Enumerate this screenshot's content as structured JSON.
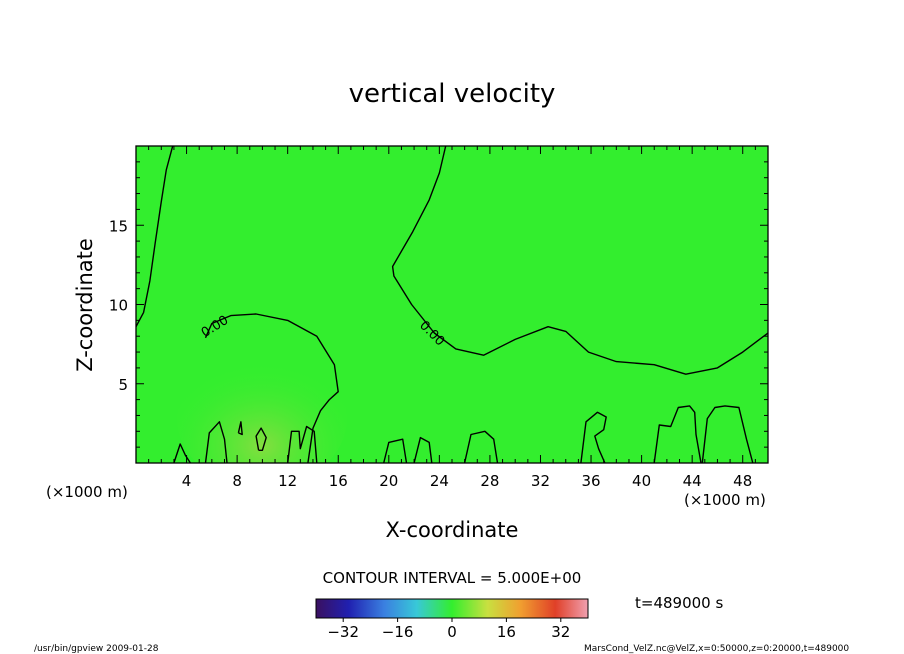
{
  "chart_data": {
    "type": "heatmap",
    "title": "vertical velocity",
    "xlabel": "X-coordinate",
    "ylabel": "Z-coordinate",
    "x_unit_left": "(×1000 m)",
    "x_unit_right": "(×1000 m)",
    "xlim": [
      0,
      50
    ],
    "ylim": [
      0,
      20
    ],
    "x_ticks": [
      4,
      8,
      12,
      16,
      20,
      24,
      28,
      32,
      36,
      40,
      44,
      48
    ],
    "y_ticks": [
      5,
      10,
      15
    ],
    "contour_label": "0.00",
    "contour_interval_text": "CONTOUR INTERVAL = 5.000E+00",
    "time_text": "t=489000 s",
    "colorbar": {
      "ticks": [
        -32,
        -16,
        0,
        16,
        32
      ],
      "range": [
        -40,
        40
      ]
    },
    "footer_left": "/usr/bin/gpview   2009-01-28",
    "footer_right": "MarsCond_VelZ.nc@VelZ,x=0:50000,z=0:20000,t=489000",
    "colors": {
      "field": "#33ee2e",
      "plume": "#7ee040",
      "contour": "#000000"
    },
    "contours": [
      {
        "name": "zero-contour-left",
        "points": [
          [
            0,
            8.6
          ],
          [
            0.6,
            9.5
          ],
          [
            1.1,
            11.5
          ],
          [
            1.5,
            13.8
          ],
          [
            2.0,
            16.5
          ],
          [
            2.4,
            18.5
          ],
          [
            2.9,
            20
          ]
        ]
      },
      {
        "name": "zero-contour-right",
        "points": [
          [
            24.5,
            20
          ],
          [
            24.0,
            18.3
          ],
          [
            23.2,
            16.6
          ],
          [
            21.9,
            14.6
          ],
          [
            20.3,
            12.4
          ],
          [
            20.4,
            11.8
          ],
          [
            21.8,
            10.0
          ],
          [
            23.6,
            8.2
          ],
          [
            25.3,
            7.2
          ],
          [
            27.5,
            6.8
          ],
          [
            30.0,
            7.8
          ],
          [
            32.6,
            8.6
          ],
          [
            34.0,
            8.3
          ],
          [
            35.8,
            7.0
          ],
          [
            38.0,
            6.4
          ],
          [
            41.0,
            6.2
          ],
          [
            43.5,
            5.6
          ],
          [
            46.0,
            6.0
          ],
          [
            48.0,
            7.0
          ],
          [
            50,
            8.2
          ]
        ]
      },
      {
        "name": "zero-contour-plume",
        "points": [
          [
            5.5,
            7.9
          ],
          [
            6.0,
            8.8
          ],
          [
            7.5,
            9.3
          ],
          [
            9.5,
            9.4
          ],
          [
            12.0,
            9.0
          ],
          [
            14.3,
            8.0
          ],
          [
            15.7,
            6.2
          ],
          [
            16.0,
            4.5
          ],
          [
            15.3,
            4.0
          ],
          [
            14.6,
            3.3
          ],
          [
            14.0,
            2.2
          ],
          [
            13.6,
            0
          ]
        ]
      },
      {
        "name": "zero-contour-cell-a",
        "points": [
          [
            3.0,
            0
          ],
          [
            3.5,
            1.2
          ],
          [
            3.9,
            0.5
          ],
          [
            4.3,
            0
          ]
        ]
      },
      {
        "name": "zero-contour-cell-b",
        "points": [
          [
            5.5,
            0
          ],
          [
            5.8,
            1.9
          ],
          [
            6.6,
            2.6
          ],
          [
            7.0,
            1.5
          ],
          [
            7.2,
            0
          ]
        ]
      },
      {
        "name": "zero-contour-cell-c",
        "points": [
          [
            12.0,
            0
          ],
          [
            12.3,
            2.0
          ],
          [
            12.9,
            2.0
          ],
          [
            13.0,
            0.9
          ],
          [
            13.5,
            2.3
          ],
          [
            14.1,
            2.0
          ],
          [
            14.3,
            0
          ]
        ]
      },
      {
        "name": "zero-contour-cell-d",
        "points": [
          [
            19.6,
            0
          ],
          [
            20.0,
            1.3
          ],
          [
            21.1,
            1.5
          ],
          [
            21.4,
            0
          ]
        ]
      },
      {
        "name": "zero-contour-cell-e",
        "points": [
          [
            22.0,
            0
          ],
          [
            22.5,
            1.6
          ],
          [
            23.2,
            1.3
          ],
          [
            23.4,
            0
          ]
        ]
      },
      {
        "name": "zero-contour-cell-f",
        "points": [
          [
            26.0,
            0
          ],
          [
            26.5,
            1.8
          ],
          [
            27.6,
            2.0
          ],
          [
            28.3,
            1.5
          ],
          [
            28.6,
            0
          ]
        ]
      },
      {
        "name": "zero-contour-cell-g",
        "points": [
          [
            35.2,
            0
          ],
          [
            35.6,
            2.6
          ],
          [
            36.5,
            3.2
          ],
          [
            37.2,
            2.9
          ],
          [
            37.0,
            2.1
          ],
          [
            36.3,
            1.7
          ],
          [
            36.6,
            0.9
          ],
          [
            37.1,
            0
          ]
        ]
      },
      {
        "name": "zero-contour-cell-h",
        "points": [
          [
            41.0,
            0
          ],
          [
            41.4,
            2.4
          ],
          [
            42.3,
            2.3
          ],
          [
            42.9,
            3.5
          ],
          [
            43.8,
            3.6
          ],
          [
            44.2,
            3.2
          ],
          [
            44.3,
            1.8
          ],
          [
            44.7,
            0
          ]
        ]
      },
      {
        "name": "zero-contour-cell-i",
        "points": [
          [
            44.8,
            0
          ],
          [
            45.2,
            2.8
          ],
          [
            45.8,
            3.5
          ],
          [
            46.6,
            3.6
          ],
          [
            47.7,
            3.5
          ],
          [
            48.3,
            1.5
          ],
          [
            48.8,
            0
          ]
        ]
      },
      {
        "name": "inner-contour-1",
        "points": [
          [
            8.1,
            1.9
          ],
          [
            8.3,
            2.6
          ],
          [
            8.4,
            1.8
          ],
          [
            8.1,
            1.9
          ]
        ]
      },
      {
        "name": "inner-contour-2",
        "points": [
          [
            9.7,
            0.8
          ],
          [
            9.5,
            1.7
          ],
          [
            9.9,
            2.2
          ],
          [
            10.3,
            1.6
          ],
          [
            10.0,
            0.8
          ],
          [
            9.7,
            0.8
          ]
        ]
      }
    ],
    "contour_label_positions": [
      {
        "x": 6.4,
        "y": 8.4,
        "angle": -32
      },
      {
        "x": 23.2,
        "y": 8.0,
        "angle": 45
      }
    ]
  }
}
